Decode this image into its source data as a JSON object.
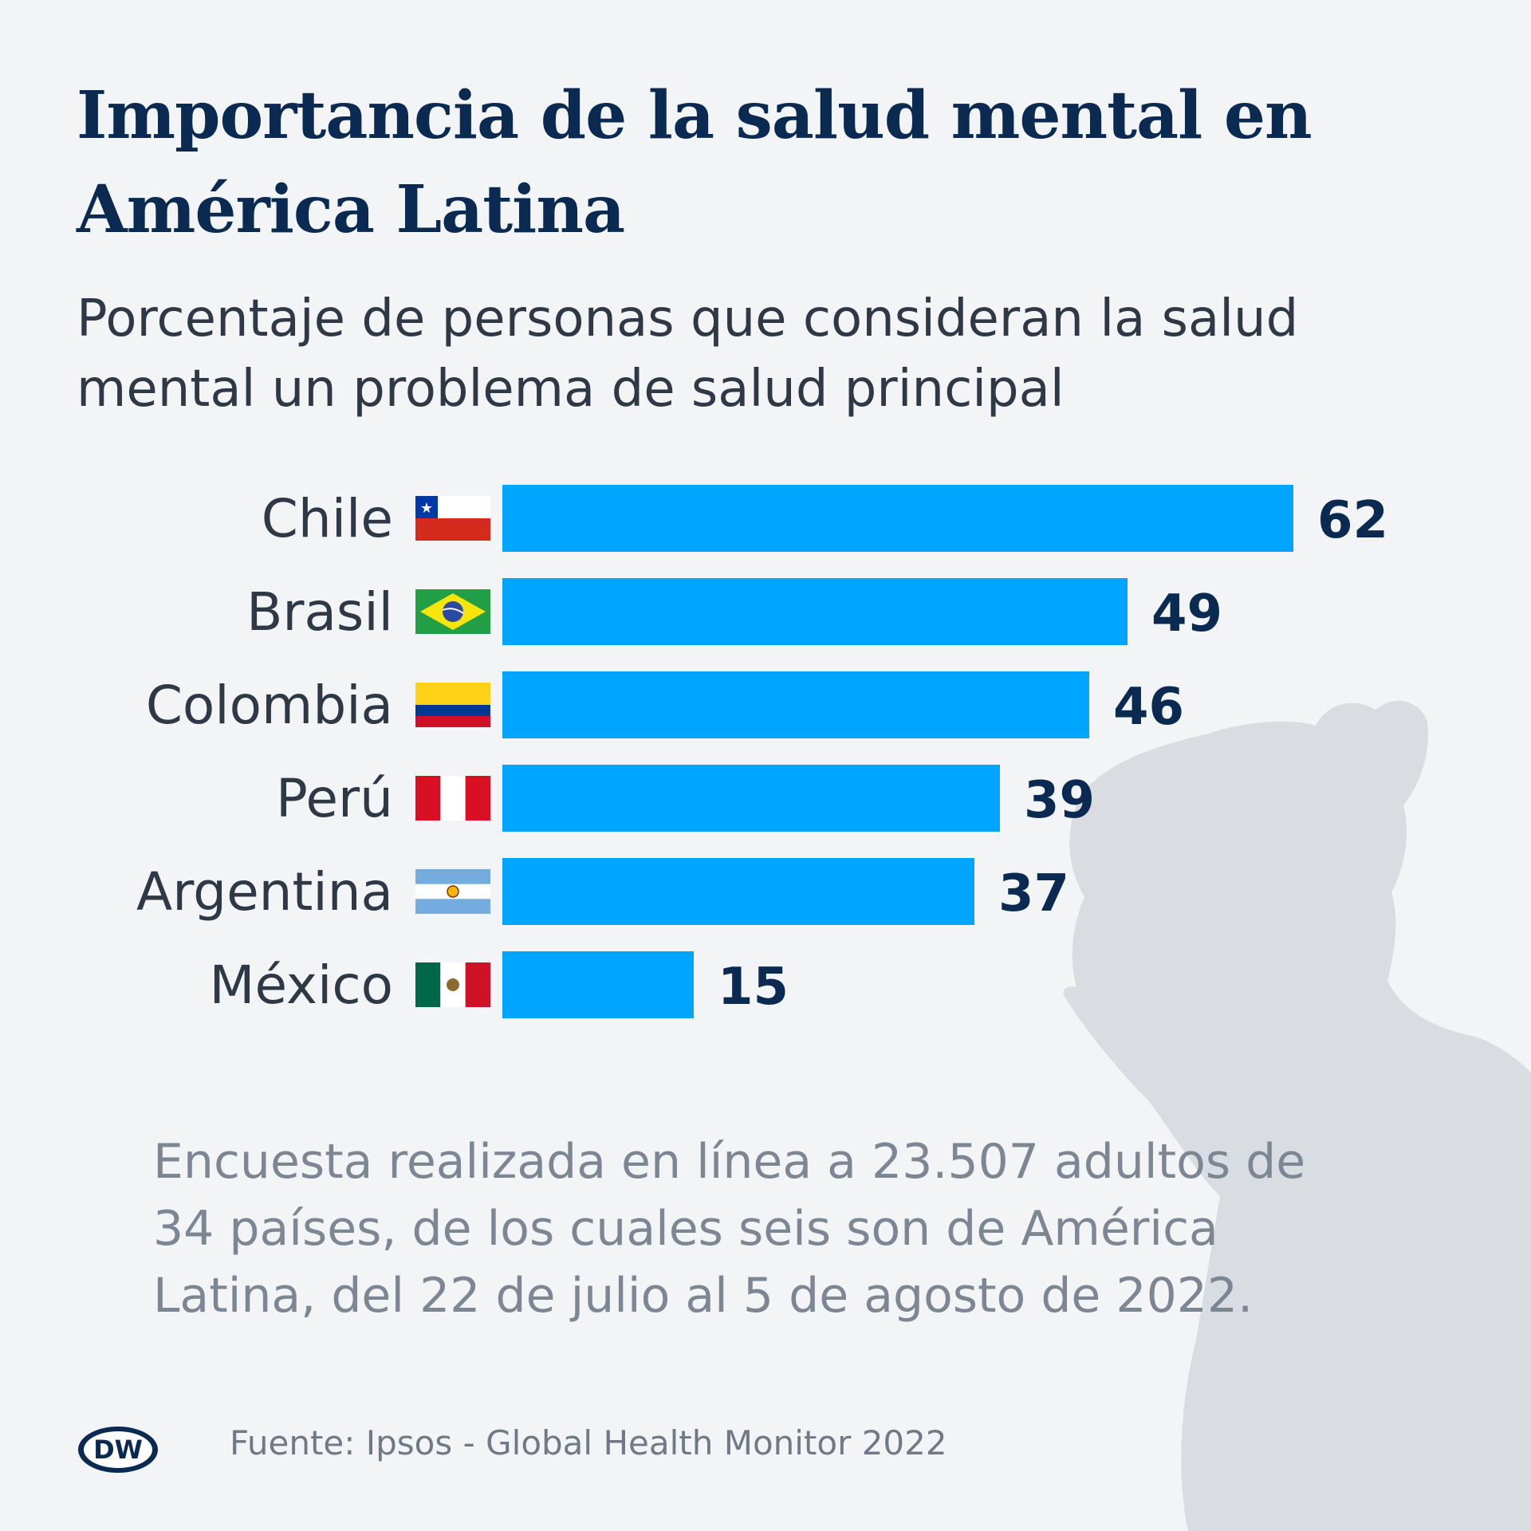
{
  "title": "Importancia de la salud mental en América Latina",
  "subtitle": "Porcentaje de personas que consideran la salud mental un problema de salud principal",
  "note": "Encuesta realizada en línea a 23.507 adultos de 34 países, de los cuales seis son de América Latina, del 22 de julio al 5 de agosto de 2022.",
  "source": "Fuente: Ipsos - Global Health Monitor 2022",
  "logo": {
    "text": "DW",
    "name": "dw-logo"
  },
  "colors": {
    "bar": "#00a5ff",
    "title": "#0b2a52",
    "value": "#0b2a52",
    "label": "#2f3946",
    "silhouette": "#d9dde1"
  },
  "chart_data": {
    "type": "bar",
    "orientation": "horizontal",
    "title": "Importancia de la salud mental en América Latina",
    "ylabel": "",
    "xlabel": "",
    "categories": [
      "Chile",
      "Brasil",
      "Colombia",
      "Perú",
      "Argentina",
      "México"
    ],
    "values": [
      62,
      49,
      46,
      39,
      37,
      15
    ],
    "flags": [
      "chile-flag-icon",
      "brazil-flag-icon",
      "colombia-flag-icon",
      "peru-flag-icon",
      "argentina-flag-icon",
      "mexico-flag-icon"
    ],
    "xlim": [
      0,
      62
    ],
    "unit": "%"
  }
}
